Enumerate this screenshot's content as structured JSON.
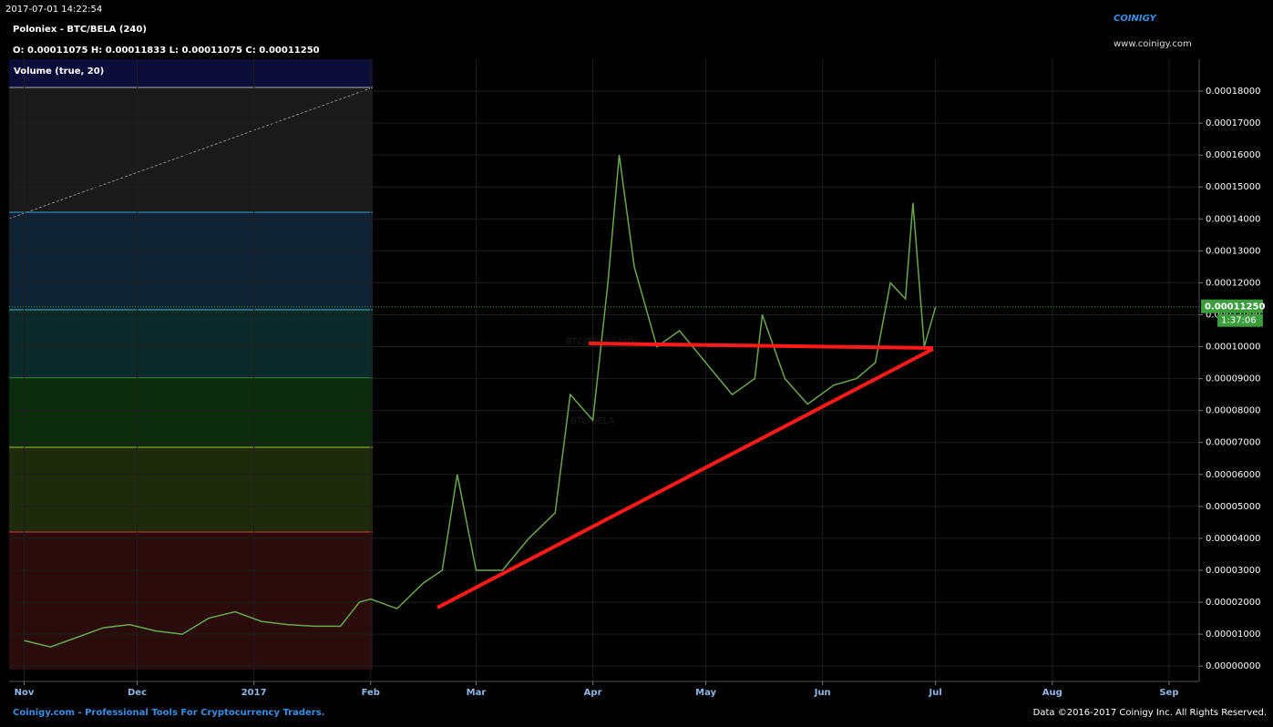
{
  "header": {
    "timestamp": "2017-07-01 14:22:54",
    "title": "Poloniex - BTC/BELA (240)",
    "ohlc": "O: 0.00011075 H: 0.00011833 L: 0.00011075 C: 0.00011250",
    "logo": "COINIGY",
    "website": "www.coinigy.com"
  },
  "footer": {
    "left": "Coinigy.com - Professional Tools For Cryptocurrency Traders.",
    "right": "Data ©2016-2017 Coinigy Inc. All Rights Reserved."
  },
  "price_tag": "0.00011250",
  "countdown": "1:37:06",
  "chart_data": {
    "type": "line",
    "indicator": "Volume (true, 20)",
    "watermark": "BTC/BELA (240)",
    "watermark_small": "BTC/BELA",
    "x": [
      "2016-11-01",
      "2016-11-08",
      "2016-11-15",
      "2016-11-22",
      "2016-11-29",
      "2016-12-06",
      "2016-12-13",
      "2016-12-20",
      "2016-12-27",
      "2017-01-03",
      "2017-01-10",
      "2017-01-17",
      "2017-01-24",
      "2017-01-29",
      "2017-02-01",
      "2017-02-08",
      "2017-02-15",
      "2017-02-20",
      "2017-02-24",
      "2017-03-01",
      "2017-03-08",
      "2017-03-15",
      "2017-03-22",
      "2017-03-26",
      "2017-04-01",
      "2017-04-05",
      "2017-04-08",
      "2017-04-12",
      "2017-04-18",
      "2017-04-24",
      "2017-05-01",
      "2017-05-08",
      "2017-05-14",
      "2017-05-16",
      "2017-05-22",
      "2017-05-28",
      "2017-06-04",
      "2017-06-10",
      "2017-06-15",
      "2017-06-19",
      "2017-06-23",
      "2017-06-25",
      "2017-06-28",
      "2017-07-01"
    ],
    "series": [
      {
        "color": "#6aa84f",
        "values": [
          8e-06,
          6e-06,
          9e-06,
          1.2e-05,
          1.3e-05,
          1.1e-05,
          1e-05,
          1.5e-05,
          1.7e-05,
          1.4e-05,
          1.3e-05,
          1.25e-05,
          1.25e-05,
          2e-05,
          2.1e-05,
          1.8e-05,
          2.6e-05,
          3e-05,
          6e-05,
          3e-05,
          3e-05,
          4e-05,
          4.8e-05,
          8.5e-05,
          7.7e-05,
          0.00012,
          0.00016,
          0.000125,
          0.0001,
          0.000105,
          9.5e-05,
          8.5e-05,
          9e-05,
          0.00011,
          9e-05,
          8.2e-05,
          8.8e-05,
          9e-05,
          9.5e-05,
          0.00012,
          0.000115,
          0.000145,
          0.0001,
          0.0001125
        ]
      }
    ],
    "xlim": [
      "2016-10-28",
      "2017-09-09"
    ],
    "xticks": [
      {
        "value": "2016-11-01",
        "label": "Nov"
      },
      {
        "value": "2016-12-01",
        "label": "Dec"
      },
      {
        "value": "2017-01-01",
        "label": "2017"
      },
      {
        "value": "2017-02-01",
        "label": "Feb"
      },
      {
        "value": "2017-03-01",
        "label": "Mar"
      },
      {
        "value": "2017-04-01",
        "label": "Apr"
      },
      {
        "value": "2017-05-01",
        "label": "May"
      },
      {
        "value": "2017-06-01",
        "label": "Jun"
      },
      {
        "value": "2017-07-01",
        "label": "Jul"
      },
      {
        "value": "2017-08-01",
        "label": "Aug"
      },
      {
        "value": "2017-09-01",
        "label": "Sep"
      }
    ],
    "ylim": [
      -4.8e-06,
      0.00019
    ],
    "yticks": [
      {
        "value": 0,
        "label": "0.00000000"
      },
      {
        "value": 1e-05,
        "label": "0.00001000"
      },
      {
        "value": 2e-05,
        "label": "0.00002000"
      },
      {
        "value": 3e-05,
        "label": "0.00003000"
      },
      {
        "value": 4e-05,
        "label": "0.00004000"
      },
      {
        "value": 5e-05,
        "label": "0.00005000"
      },
      {
        "value": 6e-05,
        "label": "0.00006000"
      },
      {
        "value": 7e-05,
        "label": "0.00007000"
      },
      {
        "value": 8e-05,
        "label": "0.00008000"
      },
      {
        "value": 9e-05,
        "label": "0.00009000"
      },
      {
        "value": 0.0001,
        "label": "0.00010000"
      },
      {
        "value": 0.00011,
        "label": "0.00011000"
      },
      {
        "value": 0.00012,
        "label": "0.00012000"
      },
      {
        "value": 0.00013,
        "label": "0.00013000"
      },
      {
        "value": 0.00014,
        "label": "0.00014000"
      },
      {
        "value": 0.00015,
        "label": "0.00015000"
      },
      {
        "value": 0.00016,
        "label": "0.00016000"
      },
      {
        "value": 0.00017,
        "label": "0.00017000"
      },
      {
        "value": 0.00018,
        "label": "0.00018000"
      }
    ],
    "grid": true
  }
}
